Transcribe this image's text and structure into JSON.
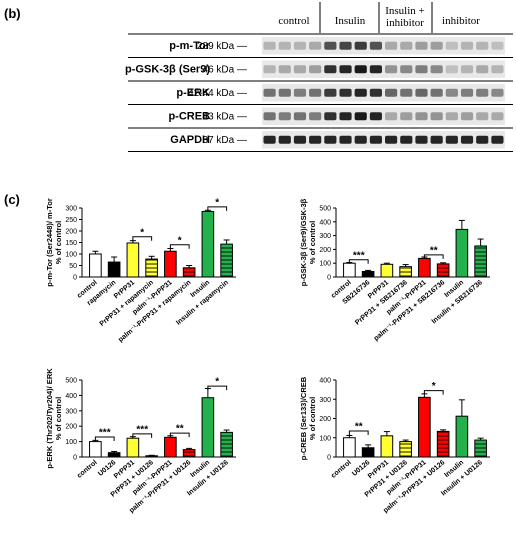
{
  "panel_b": {
    "label": "(b)",
    "groups": [
      "control",
      "Insulin",
      "Insulin +\ninhibitor",
      "inhibitor"
    ],
    "blots": [
      {
        "name": "p-m-Tor",
        "kda": "289 kDa",
        "lanes": [
          0.25,
          0.25,
          0.25,
          0.3,
          0.7,
          0.75,
          0.8,
          0.7,
          0.3,
          0.3,
          0.35,
          0.35,
          0.2,
          0.25,
          0.25,
          0.2
        ]
      },
      {
        "name": "p-GSK-3β (Ser9)",
        "kda": "46 kDa",
        "lanes": [
          0.25,
          0.3,
          0.3,
          0.35,
          0.85,
          0.9,
          0.95,
          0.9,
          0.4,
          0.45,
          0.5,
          0.45,
          0.2,
          0.25,
          0.3,
          0.25
        ]
      },
      {
        "name": "p-ERK",
        "kda": "42-44 kDa",
        "lanes": [
          0.55,
          0.55,
          0.5,
          0.55,
          0.8,
          0.85,
          0.9,
          0.85,
          0.6,
          0.55,
          0.6,
          0.55,
          0.45,
          0.5,
          0.5,
          0.45
        ]
      },
      {
        "name": "p-CREB",
        "kda": "43 kDa",
        "lanes": [
          0.55,
          0.5,
          0.55,
          0.5,
          0.85,
          0.9,
          0.95,
          0.9,
          0.3,
          0.35,
          0.4,
          0.4,
          0.3,
          0.35,
          0.3,
          0.3
        ]
      },
      {
        "name": "GAPDH",
        "kda": "37 kDa",
        "lanes": [
          0.9,
          0.9,
          0.9,
          0.9,
          0.9,
          0.9,
          0.9,
          0.9,
          0.9,
          0.9,
          0.9,
          0.9,
          0.9,
          0.9,
          0.9,
          0.9
        ]
      }
    ]
  },
  "panel_c_label": "(c)",
  "chart_data": [
    {
      "type": "bar",
      "ylabel": "p-m-Tor (Ser2448)/ m-Tor\n% of control",
      "ylim": [
        0,
        300
      ],
      "yticks": [
        0,
        50,
        100,
        150,
        200,
        250,
        300
      ],
      "categories": [
        "control",
        "rapamycin",
        "PrPP31",
        "PrPP31 + rapamycin",
        "palm⁻¹-PrPP31",
        "palm⁻¹-PrPP31 + rapamycin",
        "Insulin",
        "Insulin + rapamycin"
      ],
      "values": [
        100,
        65,
        148,
        78,
        112,
        40,
        285,
        143
      ],
      "errors": [
        12,
        22,
        10,
        12,
        12,
        10,
        5,
        18
      ],
      "colors": [
        "#ffffff",
        "#000000",
        "#ffff33",
        "#ffff33",
        "#ff0000",
        "#ff0000",
        "#22b14c",
        "#22b14c"
      ],
      "hatched": [
        false,
        false,
        false,
        true,
        false,
        true,
        false,
        true
      ],
      "significance": [
        {
          "from": 2,
          "to": 3,
          "label": "*",
          "y": 175
        },
        {
          "from": 4,
          "to": 5,
          "label": "*",
          "y": 140
        },
        {
          "from": 6,
          "to": 7,
          "label": "*",
          "y": 305
        }
      ]
    },
    {
      "type": "bar",
      "ylabel": "p-GSK-3β (Ser9)/GSK-3β\n% of control",
      "ylim": [
        0,
        500
      ],
      "yticks": [
        0,
        100,
        200,
        300,
        400,
        500
      ],
      "categories": [
        "control",
        "SB216736",
        "PrPP31",
        "PrPP31 + SB216736",
        "palm⁻¹-PrPP31",
        "palm⁻¹-PrPP31 + SB216736",
        "Insulin",
        "Insulin + SB216736"
      ],
      "values": [
        100,
        40,
        92,
        75,
        135,
        95,
        345,
        225
      ],
      "errors": [
        5,
        8,
        8,
        15,
        10,
        8,
        65,
        50
      ],
      "colors": [
        "#ffffff",
        "#000000",
        "#ffff33",
        "#ffff33",
        "#ff0000",
        "#ff0000",
        "#22b14c",
        "#22b14c"
      ],
      "hatched": [
        false,
        false,
        false,
        true,
        false,
        true,
        false,
        true
      ],
      "significance": [
        {
          "from": 0,
          "to": 1,
          "label": "***",
          "y": 125
        },
        {
          "from": 4,
          "to": 5,
          "label": "**",
          "y": 160
        }
      ]
    },
    {
      "type": "bar",
      "ylabel": "p-ERK (Thr202/Tyr204)/ ERK\n% of control",
      "ylim": [
        0,
        500
      ],
      "yticks": [
        0,
        100,
        200,
        300,
        400,
        500
      ],
      "categories": [
        "control",
        "U0126",
        "PrPP31",
        "PrPP31 + U0126",
        "palm⁻¹-PrPP31",
        "palm⁻¹-PrPP31 + U0126",
        "Insulin",
        "Insulin + U0126"
      ],
      "values": [
        100,
        28,
        122,
        8,
        128,
        48,
        385,
        160
      ],
      "errors": [
        8,
        8,
        10,
        3,
        10,
        8,
        60,
        15
      ],
      "colors": [
        "#ffffff",
        "#000000",
        "#ffff33",
        "#ffff33",
        "#ff0000",
        "#ff0000",
        "#22b14c",
        "#22b14c"
      ],
      "hatched": [
        false,
        false,
        false,
        true,
        false,
        true,
        false,
        true
      ],
      "significance": [
        {
          "from": 0,
          "to": 1,
          "label": "***",
          "y": 130
        },
        {
          "from": 2,
          "to": 3,
          "label": "***",
          "y": 150
        },
        {
          "from": 4,
          "to": 5,
          "label": "**",
          "y": 155
        },
        {
          "from": 6,
          "to": 7,
          "label": "*",
          "y": 460
        }
      ]
    },
    {
      "type": "bar",
      "ylabel": "p-CREB (Ser133)/CREB\n% of control",
      "ylim": [
        0,
        400
      ],
      "yticks": [
        0,
        100,
        200,
        300,
        400
      ],
      "categories": [
        "control",
        "U0126",
        "PrPP31",
        "PrPP31 + U0126",
        "palm⁻¹-PrPP31",
        "palm⁻¹-PrPP31 + U0126",
        "Insulin",
        "Insulin + U0126"
      ],
      "values": [
        100,
        48,
        110,
        80,
        310,
        133,
        212,
        88
      ],
      "errors": [
        12,
        15,
        22,
        8,
        18,
        8,
        85,
        10
      ],
      "colors": [
        "#ffffff",
        "#000000",
        "#ffff33",
        "#ffff33",
        "#ff0000",
        "#ff0000",
        "#22b14c",
        "#22b14c"
      ],
      "hatched": [
        false,
        false,
        false,
        true,
        false,
        true,
        false,
        true
      ],
      "significance": [
        {
          "from": 0,
          "to": 1,
          "label": "**",
          "y": 135
        },
        {
          "from": 4,
          "to": 5,
          "label": "*",
          "y": 345
        }
      ]
    }
  ]
}
